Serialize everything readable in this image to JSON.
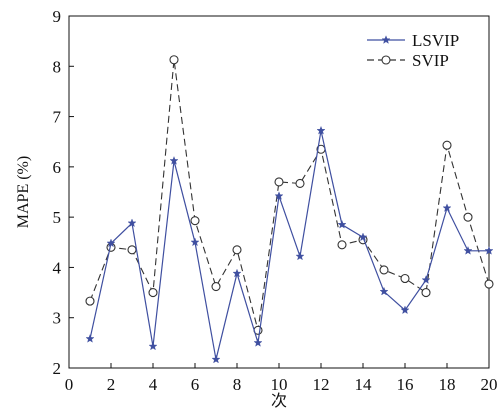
{
  "chart_data": {
    "type": "line",
    "title": "",
    "xlabel": "次",
    "ylabel": "MAPE (%)",
    "xlim": [
      0,
      20
    ],
    "ylim": [
      2,
      9
    ],
    "xticks": [
      "0",
      "2",
      "4",
      "6",
      "8",
      "10",
      "12",
      "14",
      "16",
      "18",
      "20"
    ],
    "yticks": [
      "2",
      "3",
      "4",
      "5",
      "6",
      "7",
      "8",
      "9"
    ],
    "grid": false,
    "legend_position": "top-right",
    "x": [
      1,
      2,
      3,
      4,
      5,
      6,
      7,
      8,
      9,
      10,
      11,
      12,
      13,
      14,
      15,
      16,
      17,
      18,
      19,
      20
    ],
    "series": [
      {
        "name": "LSVIP",
        "color": "#3f4fa0",
        "line_style": "solid",
        "marker": "star",
        "values": [
          2.58,
          4.48,
          4.88,
          2.43,
          6.12,
          4.5,
          2.17,
          3.88,
          2.5,
          5.42,
          4.22,
          6.72,
          4.85,
          4.6,
          3.52,
          3.15,
          3.75,
          5.18,
          4.33,
          4.33
        ]
      },
      {
        "name": "SVIP",
        "color": "#333333",
        "line_style": "dashed",
        "marker": "open-circle",
        "values": [
          3.33,
          4.4,
          4.35,
          3.5,
          8.13,
          4.93,
          3.62,
          4.35,
          2.75,
          5.7,
          5.67,
          6.35,
          4.45,
          4.55,
          3.95,
          3.78,
          3.5,
          6.43,
          5.0,
          3.67
        ]
      }
    ]
  }
}
